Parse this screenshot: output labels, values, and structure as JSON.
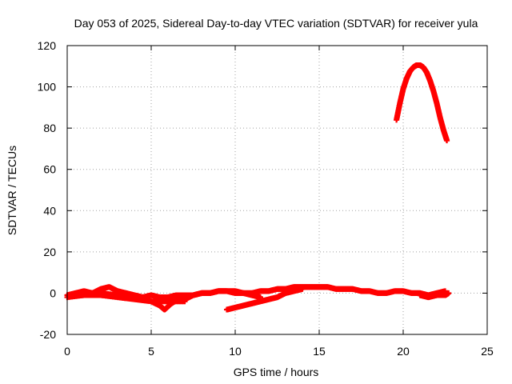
{
  "chart_data": {
    "type": "scatter",
    "title": "Day 053 of 2025, Sidereal Day-to-day VTEC variation (SDTVAR) for receiver yula",
    "xlabel": "GPS time / hours",
    "ylabel": "SDTVAR / TECUs",
    "xlim": [
      0,
      25
    ],
    "ylim": [
      -20,
      120
    ],
    "xticks": [
      0,
      5,
      10,
      15,
      20,
      25
    ],
    "yticks": [
      -20,
      0,
      20,
      40,
      60,
      80,
      100,
      120
    ],
    "grid": true,
    "marker": "plus",
    "series": [
      {
        "name": "SDTVAR",
        "color": "#ff0000",
        "tracks": [
          {
            "x": [
              0.0,
              0.5,
              1.0,
              1.5,
              2.0,
              2.5,
              3.0,
              3.5,
              4.0,
              4.5,
              5.0,
              5.5,
              6.0,
              6.5,
              7.0,
              7.5,
              8.0,
              8.5,
              9.0,
              9.5,
              10.0,
              10.5,
              11.0,
              11.5,
              12.0,
              12.5,
              13.0,
              13.5,
              14.0,
              14.5,
              15.0,
              15.5,
              16.0,
              16.5,
              17.0,
              17.5,
              18.0,
              18.5,
              19.0,
              19.5,
              20.0,
              20.5,
              21.0,
              21.5,
              22.0,
              22.5
            ],
            "y": [
              -1,
              0,
              1,
              0,
              2,
              3,
              1,
              0,
              -1,
              -2,
              -1,
              -2,
              -2,
              -1,
              -1,
              -1,
              0,
              0,
              1,
              1,
              1,
              0,
              0,
              1,
              1,
              2,
              2,
              3,
              3,
              3,
              3,
              3,
              2,
              2,
              2,
              1,
              1,
              0,
              0,
              1,
              1,
              0,
              0,
              -1,
              0,
              1
            ]
          },
          {
            "x": [
              0.0,
              1.0,
              2.0,
              3.0,
              4.0,
              5.0,
              6.0,
              7.0
            ],
            "y": [
              -2,
              -1,
              -1,
              -2,
              -3,
              -4,
              -4,
              -4
            ]
          },
          {
            "x": [
              2.0,
              3.0,
              4.0,
              5.0,
              5.5,
              5.8,
              6.2,
              6.6,
              7.0
            ],
            "y": [
              0,
              -1,
              -2,
              -4,
              -6,
              -8,
              -5,
              -3,
              -3
            ]
          },
          {
            "x": [
              9.5,
              10.0,
              10.5,
              11.0,
              11.5,
              12.0,
              12.5,
              13.0,
              13.5,
              14.0
            ],
            "y": [
              -8,
              -7,
              -6,
              -5,
              -4,
              -3,
              -2,
              0,
              1,
              2
            ]
          },
          {
            "x": [
              7.0,
              7.5,
              8.0,
              8.5,
              9.0,
              9.5,
              10.0,
              10.5,
              11.0,
              11.5
            ],
            "y": [
              -3,
              -1,
              0,
              0,
              1,
              1,
              0,
              0,
              -1,
              -2
            ]
          },
          {
            "x": [
              19.6,
              19.8,
              20.0,
              20.2,
              20.4,
              20.6,
              20.8,
              21.0,
              21.2,
              21.4,
              21.6,
              21.8,
              22.0,
              22.2,
              22.4,
              22.6
            ],
            "y": [
              84,
              92,
              99,
              104,
              107.5,
              109.5,
              110.5,
              110.5,
              109.5,
              107,
              103,
              98,
              92,
              85,
              79,
              74
            ]
          },
          {
            "x": [
              21.0,
              21.5,
              22.0,
              22.5,
              22.7
            ],
            "y": [
              -1,
              -2,
              -1,
              -1,
              0
            ]
          }
        ]
      }
    ]
  }
}
